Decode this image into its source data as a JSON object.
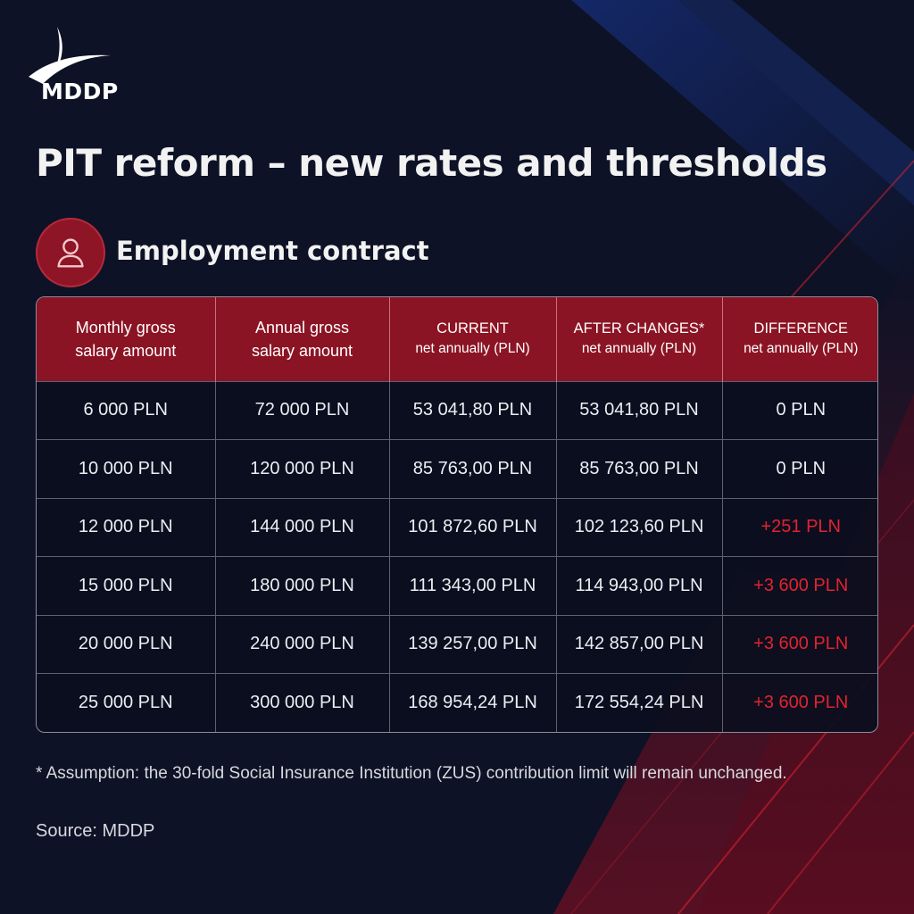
{
  "brand": {
    "name": "MDDP"
  },
  "title": "PIT reform – new rates and thresholds",
  "section": {
    "label": "Employment contract",
    "icon": "person-icon"
  },
  "table": {
    "headers": [
      {
        "line1": "Monthly gross",
        "line2": "salary amount"
      },
      {
        "line1": "Annual gross",
        "line2": "salary amount"
      },
      {
        "line1": "CURRENT",
        "line2": "net annually (PLN)"
      },
      {
        "line1": "AFTER CHANGES*",
        "line2": "net annually (PLN)"
      },
      {
        "line1": "DIFFERENCE",
        "line2": "net annually (PLN)"
      }
    ],
    "rows": [
      [
        "6 000 PLN",
        "72 000 PLN",
        "53 041,80 PLN",
        "53 041,80 PLN",
        "0 PLN"
      ],
      [
        "10 000 PLN",
        "120 000 PLN",
        "85 763,00 PLN",
        "85 763,00 PLN",
        "0 PLN"
      ],
      [
        "12 000 PLN",
        "144 000 PLN",
        "101 872,60 PLN",
        "102 123,60 PLN",
        "+251 PLN"
      ],
      [
        "15 000 PLN",
        "180 000 PLN",
        "111 343,00 PLN",
        "114 943,00 PLN",
        "+3 600 PLN"
      ],
      [
        "20 000 PLN",
        "240 000 PLN",
        "139 257,00 PLN",
        "142 857,00 PLN",
        "+3 600 PLN"
      ],
      [
        "25 000 PLN",
        "300 000 PLN",
        "168 954,24 PLN",
        "172 554,24 PLN",
        "+3 600 PLN"
      ]
    ]
  },
  "footnote": "* Assumption: the 30-fold Social Insurance Institution (ZUS) contribution limit will remain unchanged.",
  "source": "Source: MDDP",
  "colors": {
    "background": "#0d1226",
    "header_red": "#8b1424",
    "accent_red": "#e2232f",
    "accent_blue": "#1c3fa8"
  }
}
